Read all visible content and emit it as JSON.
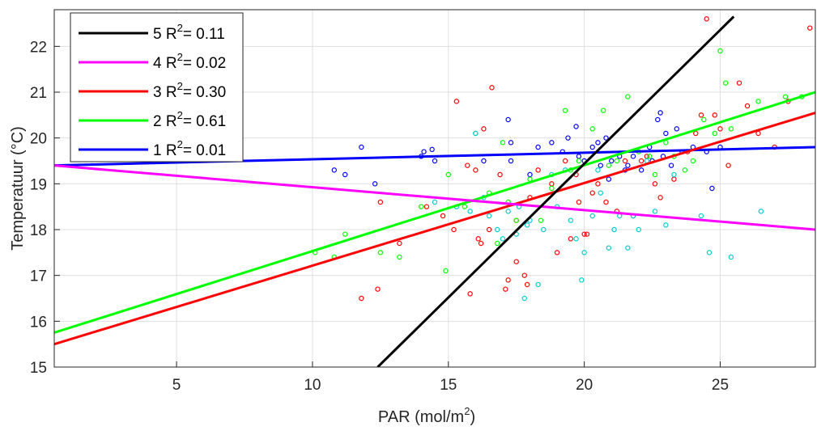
{
  "chart_data": {
    "type": "scatter",
    "xlabel": "PAR (mol/m",
    "xlabel_sup": "2",
    "xlabel_end": ")",
    "ylabel": "Temperatuur (°C)",
    "xlim": [
      0.5,
      28.5
    ],
    "ylim": [
      15,
      22.8
    ],
    "xticks": [
      5,
      10,
      15,
      20,
      25
    ],
    "yticks": [
      15,
      16,
      17,
      18,
      19,
      20,
      21,
      22
    ],
    "grid": true,
    "legend_position": "top-left",
    "fits": [
      {
        "id": "5",
        "r2_label": "R",
        "r2_sup": "2",
        "r2_value": "= 0.11",
        "color": "#000000",
        "x": [
          12.4,
          25.5
        ],
        "y": [
          15.0,
          22.65
        ]
      },
      {
        "id": "4",
        "r2_label": "R",
        "r2_sup": "2",
        "r2_value": "= 0.02",
        "color": "#ff00ff",
        "x": [
          0.5,
          28.5
        ],
        "y": [
          19.4,
          18.0
        ]
      },
      {
        "id": "3",
        "r2_label": "R",
        "r2_sup": "2",
        "r2_value": "= 0.30",
        "color": "#ff0000",
        "x": [
          0.5,
          28.5
        ],
        "y": [
          15.5,
          20.55
        ]
      },
      {
        "id": "2",
        "r2_label": "R",
        "r2_sup": "2",
        "r2_value": "= 0.61",
        "color": "#00ff00",
        "x": [
          0.5,
          28.5
        ],
        "y": [
          15.75,
          21.0
        ]
      },
      {
        "id": "1",
        "r2_label": "R",
        "r2_sup": "2",
        "r2_value": "= 0.01",
        "color": "#0000ff",
        "x": [
          0.5,
          28.5
        ],
        "y": [
          19.4,
          19.8
        ]
      }
    ],
    "series": [
      {
        "id": "blue",
        "color": "#0000ff",
        "points": [
          [
            10.8,
            19.3
          ],
          [
            11.2,
            19.2
          ],
          [
            11.8,
            19.8
          ],
          [
            12.3,
            19.0
          ],
          [
            14.0,
            19.6
          ],
          [
            14.1,
            19.7
          ],
          [
            14.4,
            19.75
          ],
          [
            14.5,
            19.5
          ],
          [
            16.3,
            19.5
          ],
          [
            17.2,
            20.4
          ],
          [
            17.3,
            19.9
          ],
          [
            17.3,
            19.5
          ],
          [
            18.0,
            19.2
          ],
          [
            18.3,
            19.8
          ],
          [
            18.8,
            19.9
          ],
          [
            19.2,
            19.7
          ],
          [
            19.4,
            20.0
          ],
          [
            19.7,
            20.25
          ],
          [
            19.8,
            19.6
          ],
          [
            20.0,
            19.5
          ],
          [
            20.3,
            19.8
          ],
          [
            20.5,
            19.9
          ],
          [
            20.6,
            19.4
          ],
          [
            20.8,
            20.0
          ],
          [
            21.0,
            19.5
          ],
          [
            21.3,
            19.6
          ],
          [
            21.6,
            19.4
          ],
          [
            21.8,
            19.6
          ],
          [
            22.1,
            19.3
          ],
          [
            22.4,
            19.8
          ],
          [
            22.5,
            19.5
          ],
          [
            22.7,
            20.4
          ],
          [
            22.9,
            19.6
          ],
          [
            23.0,
            20.1
          ],
          [
            23.2,
            19.4
          ],
          [
            23.4,
            20.2
          ],
          [
            23.6,
            19.7
          ],
          [
            24.0,
            19.8
          ],
          [
            24.5,
            19.7
          ],
          [
            24.7,
            18.9
          ],
          [
            25.0,
            19.8
          ],
          [
            22.8,
            20.55
          ],
          [
            21.5,
            19.3
          ],
          [
            20.9,
            19.1
          ]
        ],
        "note": ""
      },
      {
        "id": "red",
        "color": "#ff0000",
        "points": [
          [
            11.8,
            16.5
          ],
          [
            12.4,
            16.7
          ],
          [
            12.5,
            18.6
          ],
          [
            13.2,
            17.7
          ],
          [
            14.2,
            18.5
          ],
          [
            14.8,
            18.3
          ],
          [
            15.3,
            20.8
          ],
          [
            15.7,
            19.4
          ],
          [
            15.8,
            16.6
          ],
          [
            16.0,
            19.3
          ],
          [
            16.1,
            17.8
          ],
          [
            16.2,
            17.7
          ],
          [
            16.5,
            18.0
          ],
          [
            16.6,
            21.1
          ],
          [
            16.9,
            19.2
          ],
          [
            17.1,
            16.7
          ],
          [
            17.2,
            16.9
          ],
          [
            17.5,
            17.3
          ],
          [
            17.5,
            18.2
          ],
          [
            17.8,
            17.0
          ],
          [
            17.9,
            16.8
          ],
          [
            18.0,
            18.7
          ],
          [
            18.3,
            19.3
          ],
          [
            18.8,
            19.0
          ],
          [
            19.0,
            17.5
          ],
          [
            19.3,
            19.5
          ],
          [
            19.5,
            17.8
          ],
          [
            19.7,
            19.2
          ],
          [
            19.8,
            18.6
          ],
          [
            20.0,
            17.9
          ],
          [
            20.1,
            17.9
          ],
          [
            20.3,
            18.8
          ],
          [
            20.5,
            19.0
          ],
          [
            20.8,
            18.6
          ],
          [
            21.2,
            18.4
          ],
          [
            21.5,
            19.5
          ],
          [
            21.8,
            18.3
          ],
          [
            22.1,
            19.5
          ],
          [
            22.3,
            19.6
          ],
          [
            22.6,
            19.0
          ],
          [
            22.8,
            18.7
          ],
          [
            23.3,
            19.1
          ],
          [
            23.8,
            19.7
          ],
          [
            24.1,
            20.1
          ],
          [
            24.3,
            20.5
          ],
          [
            24.5,
            22.6
          ],
          [
            24.8,
            20.5
          ],
          [
            25.0,
            20.2
          ],
          [
            25.3,
            19.4
          ],
          [
            25.7,
            21.2
          ],
          [
            26.0,
            20.7
          ],
          [
            26.4,
            20.1
          ],
          [
            27.0,
            19.8
          ],
          [
            27.5,
            20.8
          ],
          [
            28.3,
            22.4
          ],
          [
            16.3,
            20.2
          ],
          [
            15.2,
            18.0
          ]
        ]
      },
      {
        "id": "green",
        "color": "#00ff00",
        "points": [
          [
            10.1,
            17.5
          ],
          [
            10.8,
            17.4
          ],
          [
            11.2,
            17.9
          ],
          [
            12.5,
            17.5
          ],
          [
            13.2,
            17.4
          ],
          [
            14.0,
            18.5
          ],
          [
            14.9,
            17.1
          ],
          [
            15.0,
            19.2
          ],
          [
            15.6,
            18.5
          ],
          [
            16.0,
            20.1
          ],
          [
            16.5,
            18.8
          ],
          [
            16.8,
            17.7
          ],
          [
            17.0,
            19.9
          ],
          [
            17.2,
            18.6
          ],
          [
            17.5,
            18.2
          ],
          [
            18.0,
            19.1
          ],
          [
            18.4,
            18.2
          ],
          [
            18.8,
            18.9
          ],
          [
            19.3,
            20.6
          ],
          [
            19.5,
            19.3
          ],
          [
            19.8,
            19.5
          ],
          [
            20.3,
            20.2
          ],
          [
            20.7,
            20.6
          ],
          [
            20.9,
            19.4
          ],
          [
            21.2,
            19.5
          ],
          [
            21.6,
            20.9
          ],
          [
            22.0,
            19.7
          ],
          [
            22.4,
            19.6
          ],
          [
            22.6,
            19.2
          ],
          [
            23.0,
            19.9
          ],
          [
            23.3,
            19.6
          ],
          [
            23.7,
            19.3
          ],
          [
            24.0,
            19.5
          ],
          [
            24.4,
            20.4
          ],
          [
            24.8,
            20.1
          ],
          [
            25.0,
            21.9
          ],
          [
            25.2,
            21.2
          ],
          [
            25.4,
            20.2
          ],
          [
            26.4,
            20.8
          ],
          [
            27.4,
            20.9
          ],
          [
            28.0,
            20.9
          ]
        ]
      },
      {
        "id": "cyan",
        "color": "#00cccc",
        "points": [
          [
            14.5,
            18.6
          ],
          [
            15.3,
            18.5
          ],
          [
            15.8,
            18.4
          ],
          [
            16.0,
            20.1
          ],
          [
            16.5,
            18.3
          ],
          [
            16.8,
            18.0
          ],
          [
            17.0,
            17.8
          ],
          [
            17.2,
            18.4
          ],
          [
            17.5,
            17.9
          ],
          [
            17.8,
            16.5
          ],
          [
            17.9,
            18.1
          ],
          [
            18.0,
            18.2
          ],
          [
            18.3,
            16.8
          ],
          [
            18.5,
            18.0
          ],
          [
            18.8,
            19.2
          ],
          [
            19.0,
            18.5
          ],
          [
            19.3,
            19.3
          ],
          [
            19.5,
            18.2
          ],
          [
            19.7,
            17.8
          ],
          [
            19.9,
            16.9
          ],
          [
            20.0,
            17.5
          ],
          [
            20.3,
            18.3
          ],
          [
            20.5,
            19.3
          ],
          [
            20.6,
            18.8
          ],
          [
            20.9,
            17.6
          ],
          [
            21.1,
            18.0
          ],
          [
            21.3,
            18.3
          ],
          [
            21.6,
            17.6
          ],
          [
            21.8,
            18.3
          ],
          [
            22.0,
            18.0
          ],
          [
            22.3,
            19.5
          ],
          [
            22.6,
            18.4
          ],
          [
            23.0,
            18.1
          ],
          [
            23.3,
            19.2
          ],
          [
            24.3,
            18.3
          ],
          [
            24.6,
            17.5
          ],
          [
            25.4,
            17.4
          ],
          [
            26.5,
            18.4
          ],
          [
            16.3,
            18.7
          ],
          [
            17.6,
            18.5
          ]
        ]
      }
    ]
  }
}
